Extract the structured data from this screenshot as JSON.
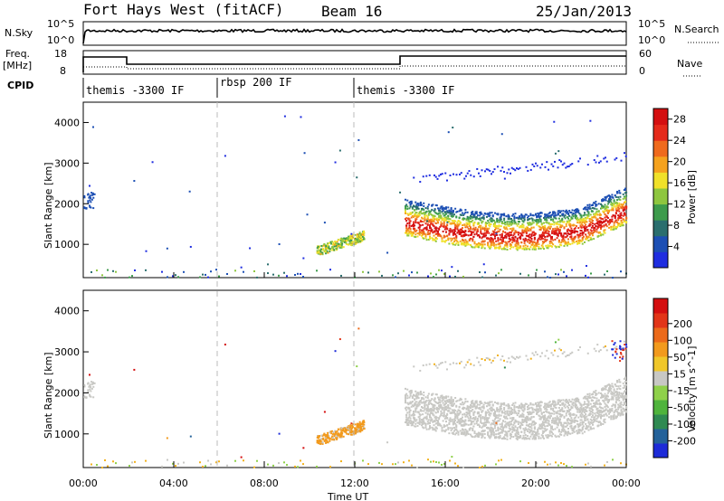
{
  "header": {
    "radar": "Fort Hays West (fitACF)",
    "beam": "Beam 16",
    "date": "25/Jan/2013"
  },
  "top_panels": {
    "nsky_label": "N.Sky",
    "nsearch_label": "N.Search",
    "freq_label_1": "Freq.",
    "freq_label_2": "[MHz]",
    "nave_label": "Nave",
    "cpid_label": "CPID",
    "nsky_ticks": [
      "10^5",
      "10^0"
    ],
    "nsearch_ticks": [
      "10^5",
      "10^0"
    ],
    "freq_ticks": [
      "18",
      "8"
    ],
    "nave_ticks": [
      "60",
      "0"
    ]
  },
  "cpid_segments": [
    {
      "label": "themis -3300 IF",
      "start_hour": 0
    },
    {
      "label": "rbsp 200 IF",
      "start_hour": 6
    },
    {
      "label": "themis -3300 IF",
      "start_hour": 12
    }
  ],
  "x_axis": {
    "label": "Time UT",
    "ticks": [
      "00:00",
      "04:00",
      "08:00",
      "12:00",
      "16:00",
      "20:00",
      "00:00"
    ]
  },
  "chart_data": [
    {
      "type": "heatmap",
      "name_axis": "Power [dB]",
      "ylabel": "Slant Range [km]",
      "xlabel": "Time UT",
      "xlim_hours": [
        0,
        24
      ],
      "ylim": [
        180,
        4500
      ],
      "yticks": [
        1000,
        2000,
        3000,
        4000
      ],
      "colorbar_ticks": [
        "4",
        "8",
        "12",
        "16",
        "20",
        "24",
        "28"
      ],
      "colorbar_range": [
        0,
        30
      ],
      "colorbar_colors": [
        "#1f2de0",
        "#1c4fb4",
        "#2a6e6e",
        "#3d9b4c",
        "#8ec63f",
        "#f0e12a",
        "#f5a21e",
        "#ef6a1d",
        "#e52a1a",
        "#d40f10"
      ]
    },
    {
      "type": "heatmap",
      "name_axis": "Velocity [m s^-1]",
      "ylabel": "Slant Range [km]",
      "xlabel": "Time UT",
      "xlim_hours": [
        0,
        24
      ],
      "ylim": [
        180,
        4500
      ],
      "yticks": [
        1000,
        2000,
        3000,
        4000
      ],
      "colorbar_ticks": [
        "200",
        "100",
        "50",
        "15",
        "-15",
        "-50",
        "-100",
        "-200"
      ],
      "colorbar_colors": [
        "#1d2bd8",
        "#24629a",
        "#2f8a52",
        "#4fb43c",
        "#8fd14a",
        "#c8c8c4",
        "#f0c72a",
        "#f29a1d",
        "#ec6a1a",
        "#e23518",
        "#d40f10"
      ]
    }
  ]
}
